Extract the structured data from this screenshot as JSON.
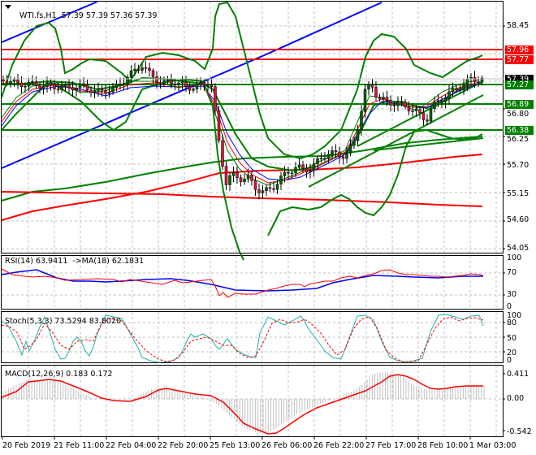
{
  "header": {
    "symbol": "WTI.fs,H1",
    "ohlc": "57.39 57.39 57.36 57.39"
  },
  "colors": {
    "background": "#ffffff",
    "grid": "#c0c0c0",
    "bull_candle": "#006400",
    "bear_candle": "#dc143c",
    "bollinger": "#008000",
    "support_line": "#008000",
    "resistance_line": "#ff0000",
    "trend_blue": "#0000ff",
    "ma_fast": "#008000",
    "ma_mid": "#ff0000",
    "ma_slow": "#0000ff",
    "rsi": "#ff0000",
    "rsi_ma": "#0000ff",
    "stoch_main": "#20b2aa",
    "stoch_signal": "#ff0000",
    "macd_hist": "#c0c0c0",
    "macd_signal": "#ff0000"
  },
  "price_axis": {
    "labels": [
      "58.45",
      "56.80",
      "56.25",
      "55.70",
      "55.15",
      "54.60",
      "54.05"
    ],
    "current_price": "57.39"
  },
  "price_tags": [
    {
      "value": "57.96",
      "color": "#ff0000"
    },
    {
      "value": "57.77",
      "color": "#ff0000"
    },
    {
      "value": "57.27",
      "color": "#008000"
    },
    {
      "value": "56.89",
      "color": "#008000"
    },
    {
      "value": "56.38",
      "color": "#008000"
    }
  ],
  "rsi": {
    "title": "RSI(14) 63.9411  ->MA(18) 62.1831",
    "axis": [
      "100",
      "70",
      "30",
      "0"
    ]
  },
  "stoch": {
    "title": "Stoch(5,3,3) 73.5294 83.8020",
    "axis": [
      "100",
      "80",
      "50",
      "20",
      "0"
    ]
  },
  "macd": {
    "title": "MACD(12,26,9) 0.183 0.172",
    "axis": [
      "0.411",
      "0.00",
      "-0.542"
    ]
  },
  "time_axis": [
    "20 Feb 2019",
    "21 Feb 11:00",
    "22 Feb 04:00",
    "22 Feb 20:00",
    "25 Feb 13:00",
    "26 Feb 06:00",
    "26 Feb 22:00",
    "27 Feb 17:00",
    "28 Feb 10:00",
    "1 Mar 03:00"
  ],
  "chart_data": [
    {
      "type": "line",
      "title": "WTI.fs,H1 57.39 57.39 57.36 57.39",
      "xlabel": "",
      "ylabel": "Price",
      "ylim": [
        54.05,
        58.45
      ],
      "grid": true,
      "categories": [
        "20 Feb 2019",
        "21 Feb 11:00",
        "22 Feb 04:00",
        "22 Feb 20:00",
        "25 Feb 13:00",
        "26 Feb 06:00",
        "26 Feb 22:00",
        "27 Feb 17:00",
        "28 Feb 10:00",
        "1 Mar 03:00"
      ],
      "series": [
        {
          "name": "Close (approx)",
          "values": [
            57.1,
            56.95,
            57.35,
            57.2,
            55.2,
            55.25,
            55.9,
            57.0,
            56.95,
            57.39
          ]
        }
      ],
      "horizontal_levels": {
        "resistance": [
          57.96,
          57.77
        ],
        "support": [
          57.27,
          56.89,
          56.38
        ]
      },
      "annotations": [
        "Current price 57.39"
      ]
    },
    {
      "type": "line",
      "title": "RSI(14) 63.9411 ->MA(18) 62.1831",
      "ylim": [
        0,
        100
      ],
      "levels": [
        70,
        30
      ],
      "series": [
        {
          "name": "RSI(14)",
          "values": [
            60,
            57,
            59,
            58,
            40,
            42,
            55,
            64,
            57,
            63.94
          ]
        },
        {
          "name": "MA(18)",
          "values": [
            55,
            58,
            57,
            57,
            48,
            45,
            50,
            58,
            59,
            62.18
          ]
        }
      ]
    },
    {
      "type": "line",
      "title": "Stoch(5,3,3) 73.5294 83.8020",
      "ylim": [
        0,
        100
      ],
      "levels": [
        80,
        50,
        20
      ],
      "series": [
        {
          "name": "%K",
          "values": [
            80,
            30,
            85,
            20,
            10,
            90,
            40,
            95,
            5,
            73.53
          ]
        },
        {
          "name": "%D",
          "values": [
            70,
            40,
            75,
            30,
            15,
            85,
            50,
            90,
            10,
            83.8
          ]
        }
      ]
    },
    {
      "type": "bar",
      "title": "MACD(12,26,9) 0.183 0.172",
      "ylim": [
        -0.542,
        0.411
      ],
      "series": [
        {
          "name": "MACD histogram",
          "values": [
            0.1,
            0.28,
            0.25,
            0.05,
            -0.4,
            -0.5,
            -0.15,
            0.3,
            0.12,
            0.183
          ]
        },
        {
          "name": "Signal",
          "values": [
            0.05,
            0.27,
            0.22,
            0.08,
            -0.3,
            -0.52,
            -0.2,
            0.33,
            0.1,
            0.172
          ]
        }
      ]
    }
  ]
}
